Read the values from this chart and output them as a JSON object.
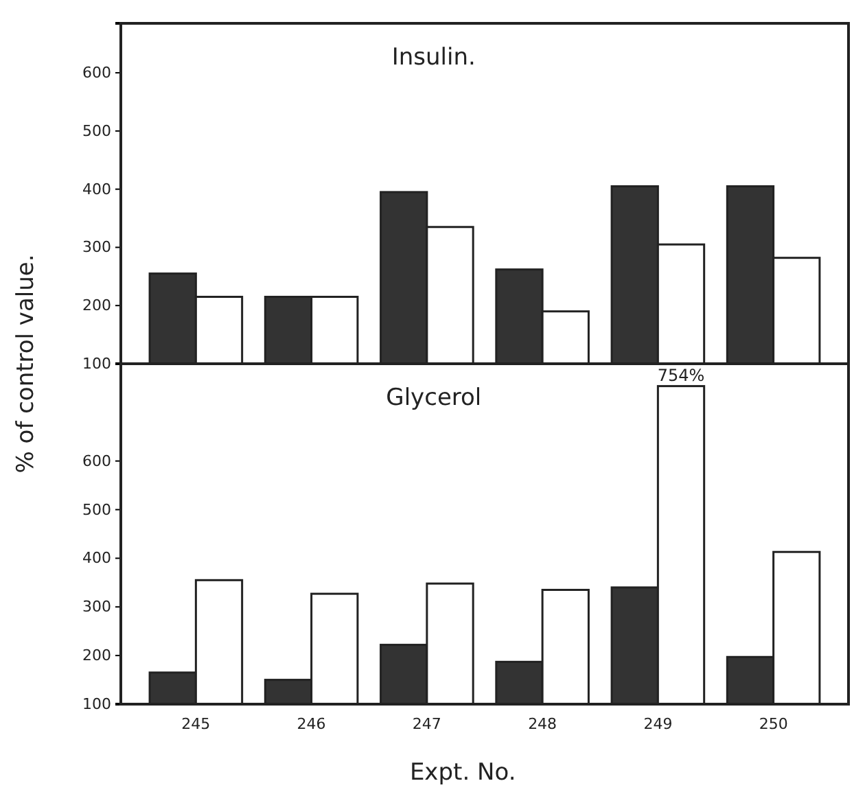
{
  "chart_data": [
    {
      "type": "bar",
      "title": "Insulin.",
      "ylabel": "% of control value.",
      "categories": [
        "245",
        "246",
        "247",
        "248",
        "249",
        "250"
      ],
      "ylim": [
        100,
        685
      ],
      "yticks": [
        100,
        200,
        300,
        400,
        500,
        600
      ],
      "tick_labels": "y",
      "grid": false,
      "legend": false,
      "series": [
        {
          "color": "#333333",
          "values": [
            255,
            215,
            395,
            262,
            405,
            405
          ]
        },
        {
          "color": "#ffffff",
          "values": [
            215,
            215,
            335,
            190,
            305,
            282
          ]
        }
      ]
    },
    {
      "type": "bar",
      "title": "Glycerol",
      "xlabel": "Expt. No.",
      "categories": [
        "245",
        "246",
        "247",
        "248",
        "249",
        "250"
      ],
      "ylim": [
        100,
        800
      ],
      "yticks": [
        100,
        200,
        300,
        400,
        500,
        600
      ],
      "grid": false,
      "legend": false,
      "series": [
        {
          "color": "#333333",
          "values": [
            165,
            150,
            222,
            187,
            340,
            197
          ]
        },
        {
          "color": "#ffffff",
          "values": [
            355,
            327,
            348,
            335,
            754,
            413
          ],
          "value_labels": [
            null,
            null,
            null,
            null,
            "754%",
            null
          ]
        }
      ]
    }
  ]
}
